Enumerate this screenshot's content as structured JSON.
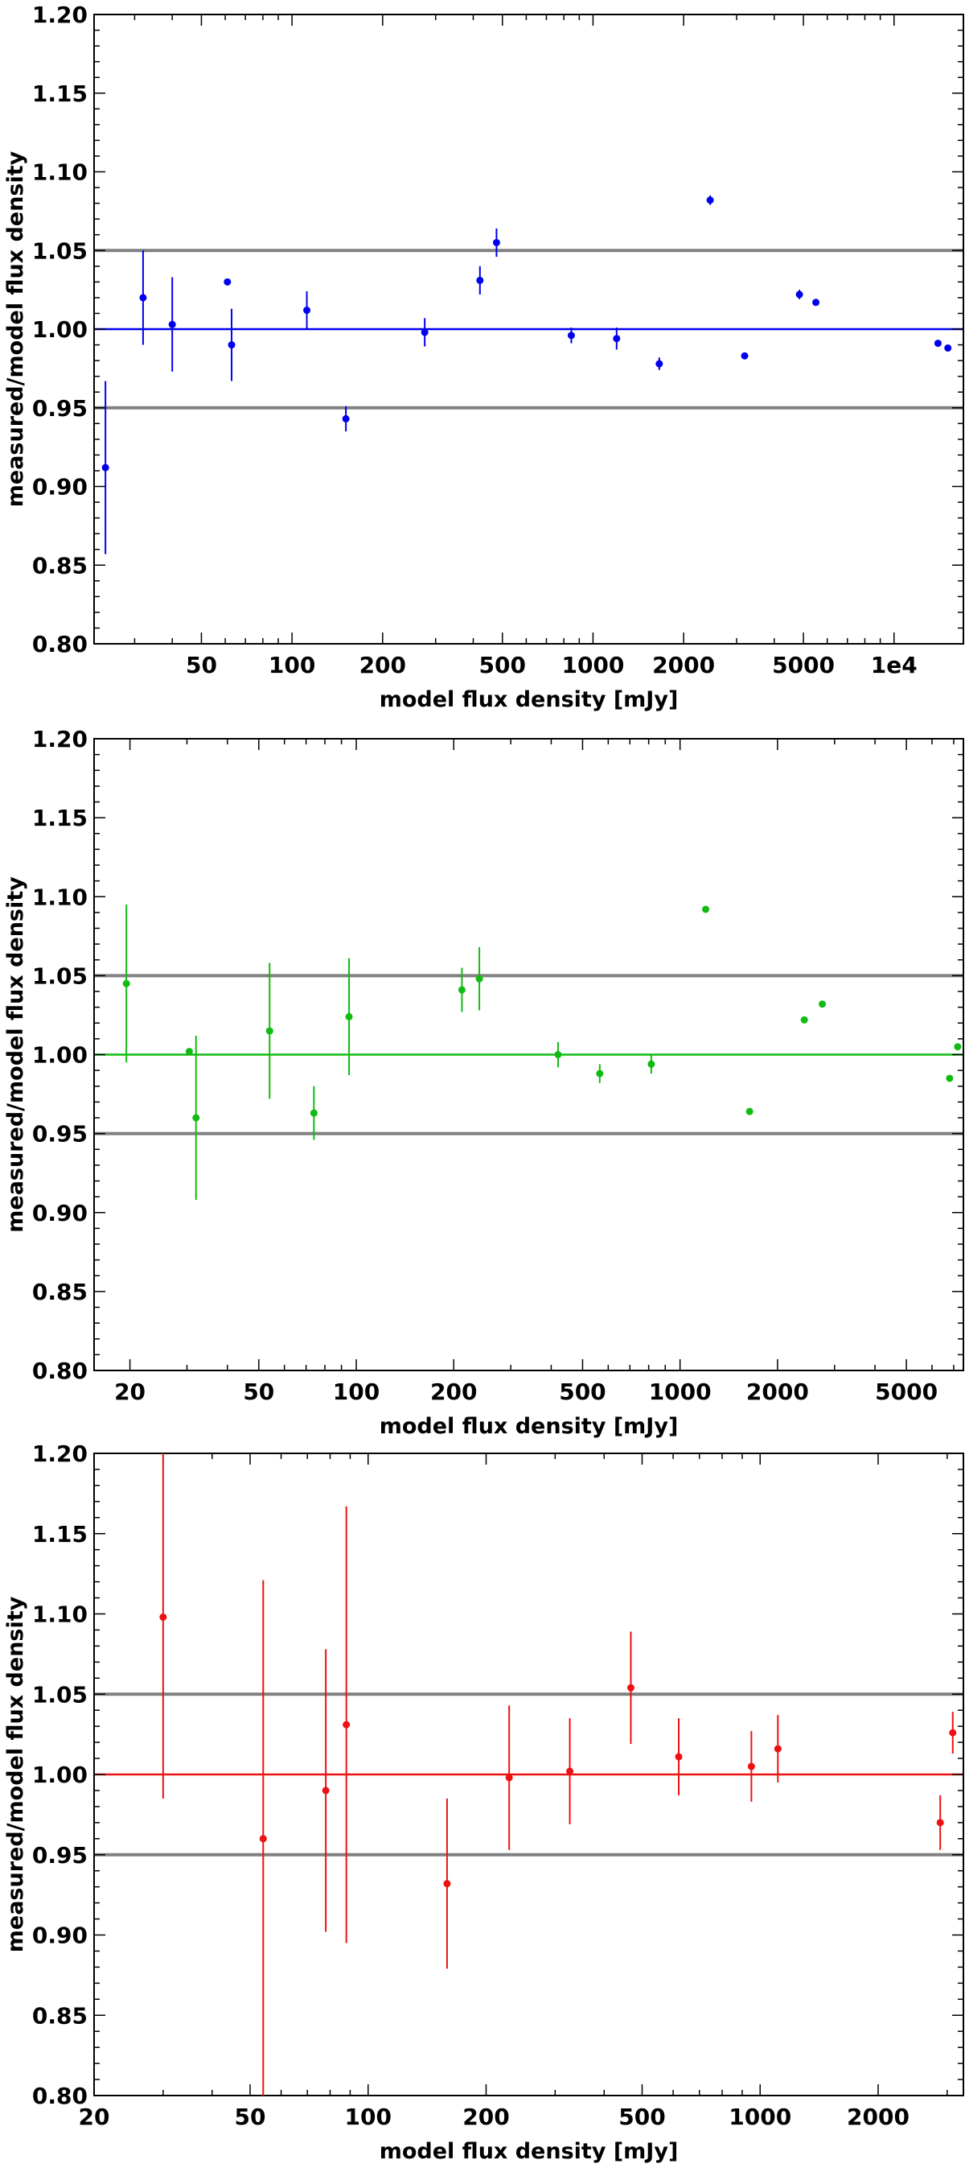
{
  "chart_data": [
    {
      "type": "scatter",
      "title": "",
      "xlabel": "model flux density [mJy]",
      "ylabel": "measured/model flux density",
      "xscale": "log",
      "xlim": [
        22,
        17000
      ],
      "ylim": [
        0.8,
        1.2
      ],
      "xticks": [
        50,
        100,
        200,
        500,
        1000,
        2000,
        5000,
        10000
      ],
      "xtick_labels": [
        "50",
        "100",
        "200",
        "500",
        "1000",
        "2000",
        "5000",
        "1e4"
      ],
      "yticks": [
        0.8,
        0.85,
        0.9,
        0.95,
        1.0,
        1.05,
        1.1,
        1.15,
        1.2
      ],
      "ytick_labels": [
        "0.80",
        "0.85",
        "0.90",
        "0.95",
        "1.00",
        "1.05",
        "1.10",
        "1.15",
        "1.20"
      ],
      "reference_lines": [
        0.95,
        1.0,
        1.05
      ],
      "color": "#0000ee",
      "grid": false,
      "points": [
        {
          "x": 24,
          "y": 0.912,
          "err": 0.055
        },
        {
          "x": 32,
          "y": 1.02,
          "err": 0.03
        },
        {
          "x": 40,
          "y": 1.003,
          "err": 0.03
        },
        {
          "x": 61,
          "y": 1.03,
          "err": 0.0
        },
        {
          "x": 63,
          "y": 0.99,
          "err": 0.023
        },
        {
          "x": 112,
          "y": 1.012,
          "err": 0.012
        },
        {
          "x": 151,
          "y": 0.943,
          "err": 0.008
        },
        {
          "x": 276,
          "y": 0.998,
          "err": 0.009
        },
        {
          "x": 421,
          "y": 1.031,
          "err": 0.009
        },
        {
          "x": 478,
          "y": 1.055,
          "err": 0.009
        },
        {
          "x": 847,
          "y": 0.996,
          "err": 0.005
        },
        {
          "x": 1198,
          "y": 0.994,
          "err": 0.007
        },
        {
          "x": 1660,
          "y": 0.978,
          "err": 0.004
        },
        {
          "x": 2450,
          "y": 1.082,
          "err": 0.003
        },
        {
          "x": 3190,
          "y": 0.983,
          "err": 0.0
        },
        {
          "x": 4850,
          "y": 1.022,
          "err": 0.003
        },
        {
          "x": 5500,
          "y": 1.017,
          "err": 0.002
        },
        {
          "x": 14000,
          "y": 0.991,
          "err": 0.002
        },
        {
          "x": 15100,
          "y": 0.988,
          "err": 0.002
        }
      ]
    },
    {
      "type": "scatter",
      "title": "",
      "xlabel": "model flux density [mJy]",
      "ylabel": "measured/model flux density",
      "xscale": "log",
      "xlim": [
        15.5,
        7500
      ],
      "ylim": [
        0.8,
        1.2
      ],
      "xticks": [
        20,
        50,
        100,
        200,
        500,
        1000,
        2000,
        5000
      ],
      "xtick_labels": [
        "20",
        "50",
        "100",
        "200",
        "500",
        "1000",
        "2000",
        "5000"
      ],
      "yticks": [
        0.8,
        0.85,
        0.9,
        0.95,
        1.0,
        1.05,
        1.1,
        1.15,
        1.2
      ],
      "ytick_labels": [
        "0.80",
        "0.85",
        "0.90",
        "0.95",
        "1.00",
        "1.05",
        "1.10",
        "1.15",
        "1.20"
      ],
      "reference_lines": [
        0.95,
        1.0,
        1.05
      ],
      "color": "#11bb11",
      "grid": false,
      "points": [
        {
          "x": 19.5,
          "y": 1.045,
          "err": 0.05
        },
        {
          "x": 30.5,
          "y": 1.002,
          "err": 0.0
        },
        {
          "x": 32,
          "y": 0.96,
          "err": 0.052
        },
        {
          "x": 54,
          "y": 1.015,
          "err": 0.043
        },
        {
          "x": 74,
          "y": 0.963,
          "err": 0.017
        },
        {
          "x": 95,
          "y": 1.024,
          "err": 0.037
        },
        {
          "x": 212,
          "y": 1.041,
          "err": 0.014
        },
        {
          "x": 240,
          "y": 1.048,
          "err": 0.02
        },
        {
          "x": 420,
          "y": 1.0,
          "err": 0.008
        },
        {
          "x": 565,
          "y": 0.988,
          "err": 0.006
        },
        {
          "x": 815,
          "y": 0.994,
          "err": 0.006
        },
        {
          "x": 1200,
          "y": 1.092,
          "err": 0.0
        },
        {
          "x": 1640,
          "y": 0.964,
          "err": 0.0
        },
        {
          "x": 2420,
          "y": 1.022,
          "err": 0.0
        },
        {
          "x": 2750,
          "y": 1.032,
          "err": 0.0
        },
        {
          "x": 6800,
          "y": 0.985,
          "err": 0.0
        },
        {
          "x": 7200,
          "y": 1.005,
          "err": 0.0
        }
      ]
    },
    {
      "type": "scatter",
      "title": "",
      "xlabel": "model flux density [mJy]",
      "ylabel": "measured/model flux density",
      "xscale": "log",
      "xlim": [
        20,
        3300
      ],
      "ylim": [
        0.8,
        1.2
      ],
      "xticks": [
        20,
        50,
        100,
        200,
        500,
        1000,
        2000
      ],
      "xtick_labels": [
        "20",
        "50",
        "100",
        "200",
        "500",
        "1000",
        "2000"
      ],
      "yticks": [
        0.8,
        0.85,
        0.9,
        0.95,
        1.0,
        1.05,
        1.1,
        1.15,
        1.2
      ],
      "ytick_labels": [
        "0.80",
        "0.85",
        "0.90",
        "0.95",
        "1.00",
        "1.05",
        "1.10",
        "1.15",
        "1.20"
      ],
      "reference_lines": [
        0.95,
        1.0,
        1.05
      ],
      "color": "#ee1111",
      "grid": false,
      "points": [
        {
          "x": 30,
          "y": 1.098,
          "err": 0.113
        },
        {
          "x": 54,
          "y": 0.96,
          "err": 0.161
        },
        {
          "x": 78,
          "y": 0.99,
          "err": 0.088
        },
        {
          "x": 88,
          "y": 1.031,
          "err": 0.136
        },
        {
          "x": 159,
          "y": 0.932,
          "err": 0.053
        },
        {
          "x": 229,
          "y": 0.998,
          "err": 0.045
        },
        {
          "x": 327,
          "y": 1.002,
          "err": 0.033
        },
        {
          "x": 468,
          "y": 1.054,
          "err": 0.035
        },
        {
          "x": 620,
          "y": 1.011,
          "err": 0.024
        },
        {
          "x": 950,
          "y": 1.005,
          "err": 0.022
        },
        {
          "x": 1110,
          "y": 1.016,
          "err": 0.021
        },
        {
          "x": 2880,
          "y": 0.97,
          "err": 0.017
        },
        {
          "x": 3100,
          "y": 1.026,
          "err": 0.013
        }
      ]
    }
  ]
}
